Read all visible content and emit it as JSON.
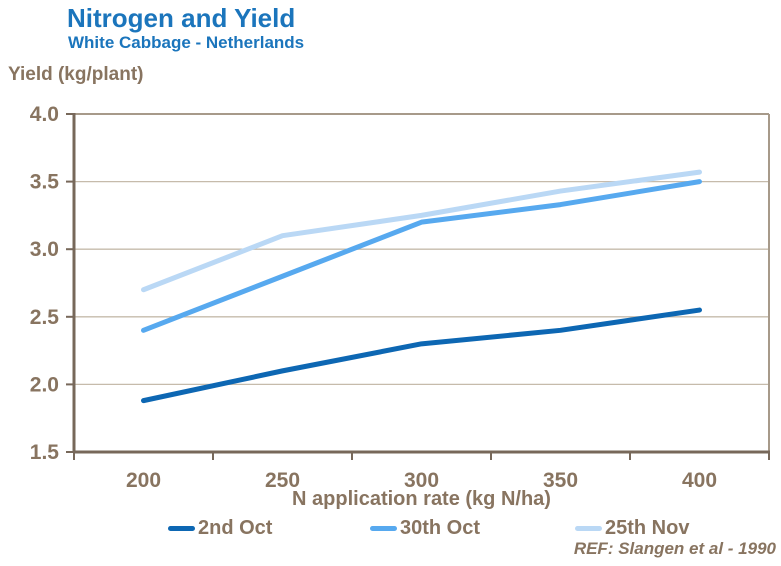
{
  "header": {
    "title": "Nitrogen and Yield",
    "subtitle": "White Cabbage - Netherlands"
  },
  "footer": {
    "ref": "REF: Slangen et al - 1990"
  },
  "colors": {
    "title_blue": "#1b75bc",
    "axis_text": "#887460",
    "gridline": "#c6bbab",
    "axis_line_strong": "#77685a",
    "axis_line_light": "#a79a8a",
    "background": "#ffffff"
  },
  "chart_data": {
    "type": "line",
    "title": "Nitrogen and Yield",
    "subtitle": "White Cabbage - Netherlands",
    "xlabel": "N application rate (kg N/ha)",
    "ylabel": "Yield (kg/plant)",
    "categories": [
      "200",
      "250",
      "300",
      "350",
      "400"
    ],
    "series": [
      {
        "name": "2nd Oct",
        "color": "#0d67b3",
        "values": [
          1.88,
          2.1,
          2.3,
          2.4,
          2.55
        ]
      },
      {
        "name": "30th Oct",
        "color": "#57a9ef",
        "values": [
          2.4,
          2.8,
          3.2,
          3.33,
          3.5
        ]
      },
      {
        "name": "25th Nov",
        "color": "#bad8f5",
        "values": [
          2.7,
          3.1,
          3.25,
          3.43,
          3.57
        ]
      }
    ],
    "ylim": [
      1.5,
      4.0
    ],
    "yticks": [
      "4.0",
      "3.5",
      "3.0",
      "2.5",
      "2.0",
      "1.5"
    ],
    "grid": "horizontal",
    "axis_mode": "category",
    "legend_position": "bottom"
  }
}
